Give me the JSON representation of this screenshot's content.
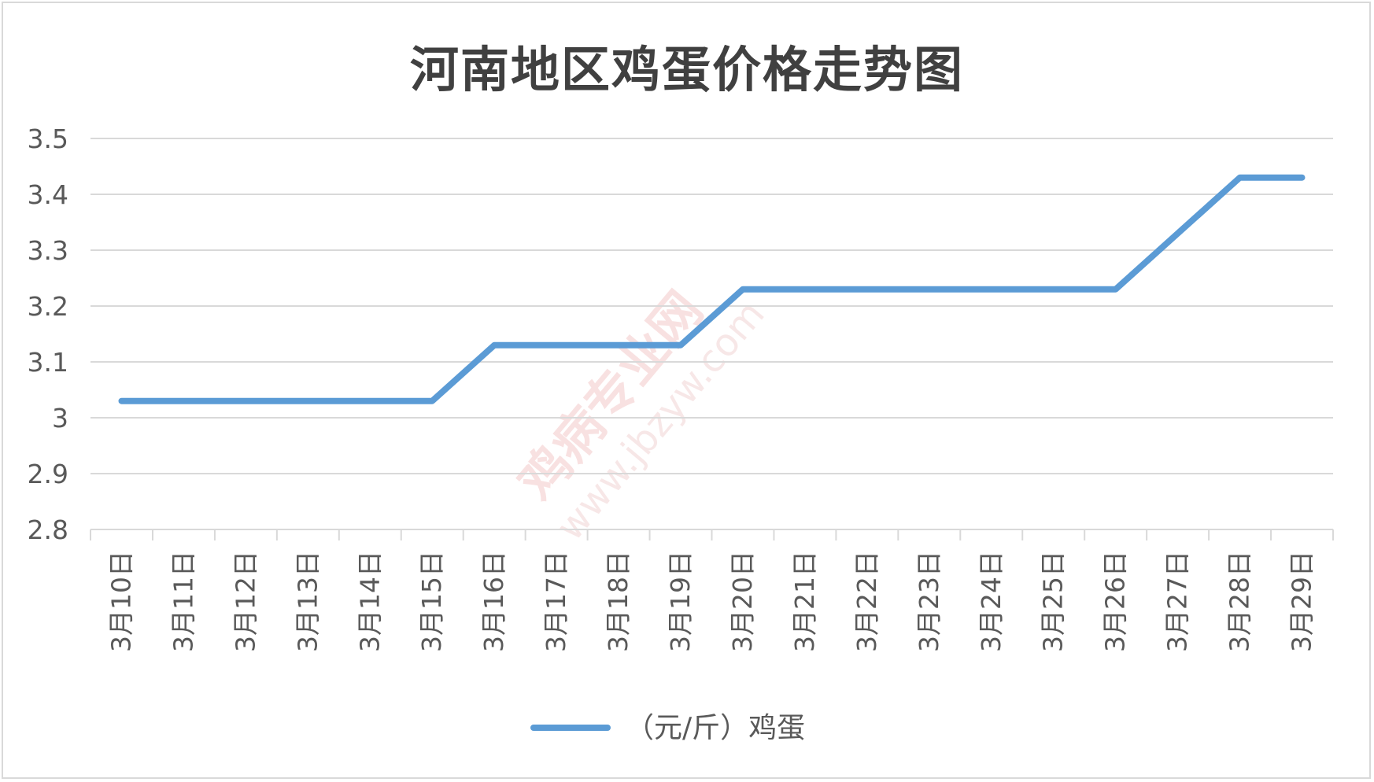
{
  "chart_data": {
    "type": "line",
    "title": "河南地区鸡蛋价格走势图",
    "categories": [
      "3月10日",
      "3月11日",
      "3月12日",
      "3月13日",
      "3月14日",
      "3月15日",
      "3月16日",
      "3月17日",
      "3月18日",
      "3月19日",
      "3月20日",
      "3月21日",
      "3月22日",
      "3月23日",
      "3月24日",
      "3月25日",
      "3月26日",
      "3月27日",
      "3月28日",
      "3月29日"
    ],
    "series": [
      {
        "name": "（元/斤）鸡蛋",
        "values": [
          3.03,
          3.03,
          3.03,
          3.03,
          3.03,
          3.03,
          3.13,
          3.13,
          3.13,
          3.13,
          3.23,
          3.23,
          3.23,
          3.23,
          3.23,
          3.23,
          3.23,
          3.33,
          3.43,
          3.43
        ],
        "color": "#5b9bd5"
      }
    ],
    "ylim": [
      2.8,
      3.5
    ],
    "yticks": [
      "2.8",
      "2.9",
      "3",
      "3.1",
      "3.2",
      "3.3",
      "3.4",
      "3.5"
    ],
    "grid": true,
    "legend": "bottom"
  },
  "watermark": {
    "text": "鸡病专业网",
    "url": "www.jbzyw.com"
  }
}
